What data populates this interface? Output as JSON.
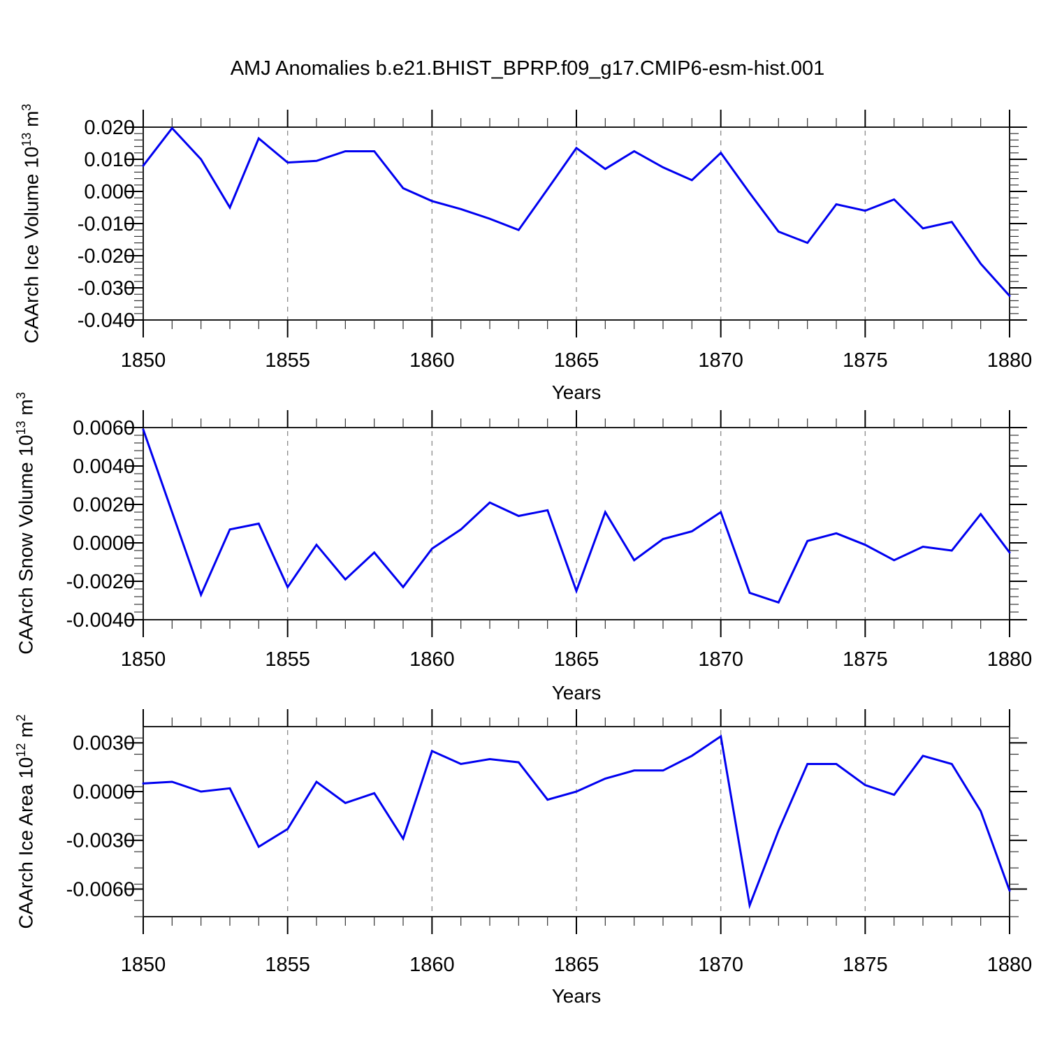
{
  "main_title": "AMJ Anomalies b.e21.BHIST_BPRP.f09_g17.CMIP6-esm-hist.001",
  "x_axis_label": "Years",
  "line_color": "#0000f0",
  "grid_color": "#909090",
  "axis_color": "#1a1a1a",
  "chart_data": [
    {
      "type": "line",
      "title": "",
      "ylabel": "CAArch Ice Volume 10^13 m^3",
      "ylabel_parts": {
        "base": "CAArch Ice Volume 10",
        "exp": "13",
        "unit": " m",
        "unit_exp": "3"
      },
      "xlabel": "Years",
      "x": [
        1850,
        1851,
        1852,
        1853,
        1854,
        1855,
        1856,
        1857,
        1858,
        1859,
        1860,
        1861,
        1862,
        1863,
        1864,
        1865,
        1866,
        1867,
        1868,
        1869,
        1870,
        1871,
        1872,
        1873,
        1874,
        1875,
        1876,
        1877,
        1878,
        1879,
        1880
      ],
      "values": [
        0.008,
        0.0197,
        0.01,
        -0.005,
        0.0165,
        0.009,
        0.0095,
        0.0125,
        0.0125,
        0.001,
        -0.003,
        -0.0055,
        -0.0085,
        -0.012,
        0.0007,
        0.0135,
        0.007,
        0.0125,
        0.0075,
        0.0035,
        0.012,
        -0.0005,
        -0.0125,
        -0.016,
        -0.004,
        -0.006,
        -0.0025,
        -0.0115,
        -0.0095,
        -0.0225,
        -0.0325
      ],
      "xlim": [
        1850,
        1880
      ],
      "ylim": [
        -0.04,
        0.02
      ],
      "yticks_major": [
        0.02,
        0.01,
        0.0,
        -0.01,
        -0.02,
        -0.03,
        -0.04
      ],
      "ytick_labels": [
        "0.020",
        "0.010",
        "0.000",
        "-0.010",
        "-0.020",
        "-0.030",
        "-0.040"
      ],
      "y_minor_step": 0.002,
      "xticks_major": [
        1850,
        1855,
        1860,
        1865,
        1870,
        1875,
        1880
      ],
      "xtick_labels": [
        "1850",
        "1855",
        "1860",
        "1865",
        "1870",
        "1875",
        "1880"
      ],
      "x_minor_step": 1,
      "grid_vertical_at": [
        1855,
        1860,
        1865,
        1870,
        1875
      ],
      "grid": "vertical-dashed",
      "legend": "none"
    },
    {
      "type": "line",
      "title": "",
      "ylabel": "CAArch Snow Volume 10^13 m^3",
      "ylabel_parts": {
        "base": "CAArch Snow Volume 10",
        "exp": "13",
        "unit": " m",
        "unit_exp": "3"
      },
      "xlabel": "Years",
      "x": [
        1850,
        1851,
        1852,
        1853,
        1854,
        1855,
        1856,
        1857,
        1858,
        1859,
        1860,
        1861,
        1862,
        1863,
        1864,
        1865,
        1866,
        1867,
        1868,
        1869,
        1870,
        1871,
        1872,
        1873,
        1874,
        1875,
        1876,
        1877,
        1878,
        1879,
        1880
      ],
      "values": [
        0.0059,
        0.0016,
        -0.0027,
        0.0007,
        0.001,
        -0.0023,
        -0.0001,
        -0.0019,
        -0.0005,
        -0.0023,
        -0.0003,
        0.0007,
        0.0021,
        0.0014,
        0.0017,
        -0.0025,
        0.0016,
        -0.0009,
        0.0002,
        0.0006,
        0.0016,
        -0.0026,
        -0.0031,
        0.0001,
        0.0005,
        -0.0001,
        -0.0009,
        -0.0002,
        -0.0004,
        0.0015,
        -0.0005
      ],
      "xlim": [
        1850,
        1880
      ],
      "ylim": [
        -0.004,
        0.006
      ],
      "yticks_major": [
        0.006,
        0.004,
        0.002,
        0.0,
        -0.002,
        -0.004
      ],
      "ytick_labels": [
        "0.0060",
        "0.0040",
        "0.0020",
        "0.0000",
        "-0.0020",
        "-0.0040"
      ],
      "y_minor_step": 0.0004,
      "xticks_major": [
        1850,
        1855,
        1860,
        1865,
        1870,
        1875,
        1880
      ],
      "xtick_labels": [
        "1850",
        "1855",
        "1860",
        "1865",
        "1870",
        "1875",
        "1880"
      ],
      "x_minor_step": 1,
      "grid_vertical_at": [
        1855,
        1860,
        1865,
        1870,
        1875
      ],
      "grid": "vertical-dashed",
      "legend": "none"
    },
    {
      "type": "line",
      "title": "",
      "ylabel": "CAArch Ice Area 10^12 m^2",
      "ylabel_parts": {
        "base": "CAArch Ice Area 10",
        "exp": "12",
        "unit": " m",
        "unit_exp": "2"
      },
      "xlabel": "Years",
      "x": [
        1850,
        1851,
        1852,
        1853,
        1854,
        1855,
        1856,
        1857,
        1858,
        1859,
        1860,
        1861,
        1862,
        1863,
        1864,
        1865,
        1866,
        1867,
        1868,
        1869,
        1870,
        1871,
        1872,
        1873,
        1874,
        1875,
        1876,
        1877,
        1878,
        1879,
        1880
      ],
      "values": [
        0.0005,
        0.0006,
        0.0,
        0.0002,
        -0.0034,
        -0.0023,
        0.0006,
        -0.0007,
        -0.0001,
        -0.0029,
        0.0025,
        0.0017,
        0.002,
        0.0018,
        -0.0005,
        0.0,
        0.0008,
        0.0013,
        0.0013,
        0.0022,
        0.0034,
        -0.007,
        -0.0024,
        0.0017,
        0.0017,
        0.0004,
        -0.0002,
        0.0022,
        0.0017,
        -0.0012,
        -0.0061
      ],
      "xlim": [
        1850,
        1880
      ],
      "ylim": [
        -0.0077,
        0.004
      ],
      "yticks_major": [
        0.003,
        0.0,
        -0.003,
        -0.006
      ],
      "ytick_labels": [
        "0.0030",
        "0.0000",
        "-0.0030",
        "-0.0060"
      ],
      "y_minor_step": 0.001,
      "xticks_major": [
        1850,
        1855,
        1860,
        1865,
        1870,
        1875,
        1880
      ],
      "xtick_labels": [
        "1850",
        "1855",
        "1860",
        "1865",
        "1870",
        "1875",
        "1880"
      ],
      "x_minor_step": 1,
      "grid_vertical_at": [
        1855,
        1860,
        1865,
        1870,
        1875
      ],
      "grid": "vertical-dashed",
      "legend": "none"
    }
  ]
}
